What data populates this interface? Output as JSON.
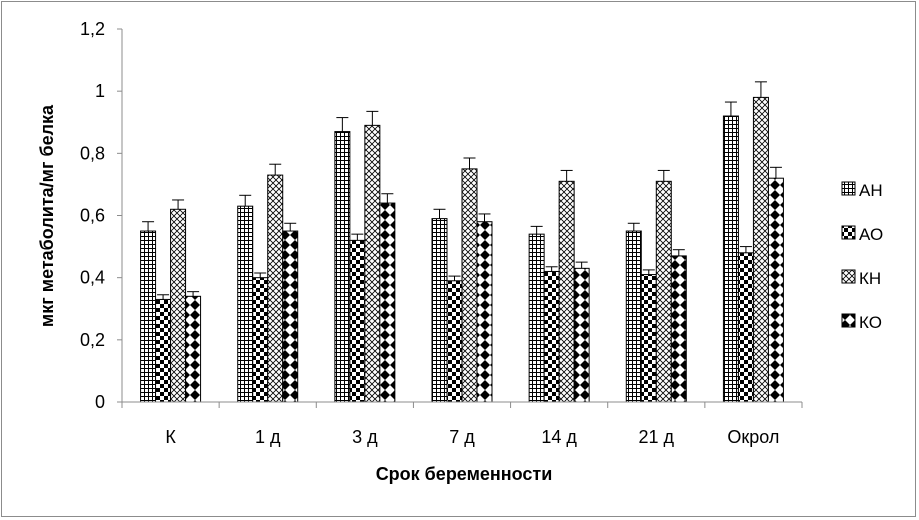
{
  "chart_data": {
    "type": "bar",
    "title": "",
    "xlabel": "Срок беременности",
    "ylabel": "мкг метаболита/мг белка",
    "ylim": [
      0,
      1.2
    ],
    "yticks": [
      "0",
      "0,2",
      "0,4",
      "0,6",
      "0,8",
      "1",
      "1,2"
    ],
    "ytick_values": [
      0,
      0.2,
      0.4,
      0.6,
      0.8,
      1.0,
      1.2
    ],
    "grid": false,
    "legend_position": "right",
    "categories": [
      "К",
      "1 д",
      "3 д",
      "7 д",
      "14 д",
      "21 д",
      "Окрол"
    ],
    "series": [
      {
        "name": "АН",
        "pattern": "grid",
        "values": [
          0.55,
          0.63,
          0.87,
          0.59,
          0.54,
          0.55,
          0.92
        ],
        "errors": [
          0.03,
          0.035,
          0.045,
          0.03,
          0.025,
          0.025,
          0.045
        ]
      },
      {
        "name": "АО",
        "pattern": "checker",
        "values": [
          0.33,
          0.4,
          0.52,
          0.39,
          0.42,
          0.41,
          0.48
        ],
        "errors": [
          0.015,
          0.015,
          0.02,
          0.015,
          0.015,
          0.015,
          0.02
        ]
      },
      {
        "name": "КН",
        "pattern": "cross",
        "values": [
          0.62,
          0.73,
          0.89,
          0.75,
          0.71,
          0.71,
          0.98
        ],
        "errors": [
          0.03,
          0.035,
          0.045,
          0.035,
          0.035,
          0.035,
          0.05
        ]
      },
      {
        "name": "КО",
        "pattern": "diamond",
        "values": [
          0.34,
          0.55,
          0.64,
          0.58,
          0.43,
          0.47,
          0.72
        ],
        "errors": [
          0.015,
          0.025,
          0.03,
          0.025,
          0.02,
          0.02,
          0.035
        ]
      }
    ]
  }
}
